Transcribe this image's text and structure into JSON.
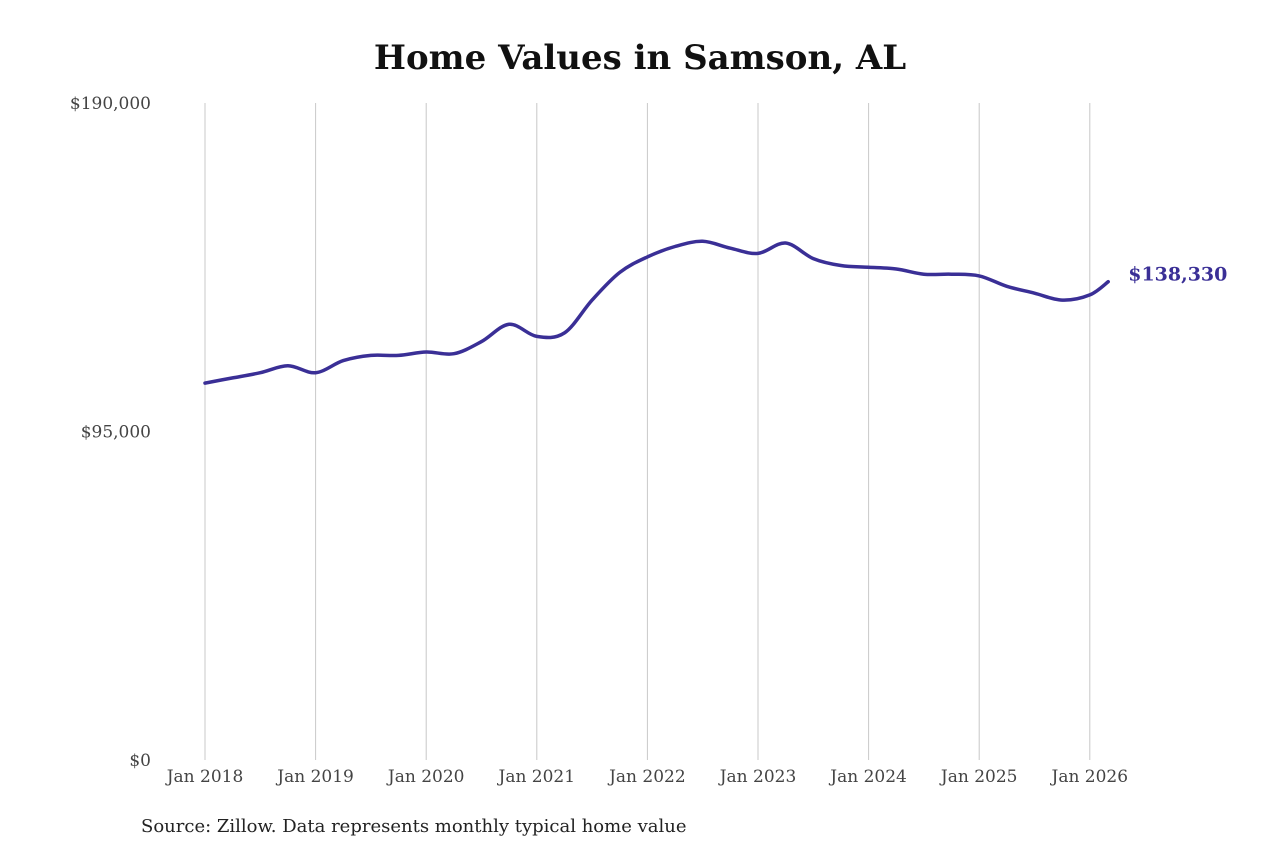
{
  "title": "Home Values in Samson, AL",
  "source": "Source: Zillow. Data represents monthly typical home value",
  "colors": {
    "line": "#3a2f96",
    "grid": "#c8c8c8",
    "text": "#444444"
  },
  "chart_data": {
    "type": "line",
    "title": "Home Values in Samson, AL",
    "xlabel": "",
    "ylabel": "",
    "ylim": [
      0,
      190000
    ],
    "yticks": [
      "$0",
      "$95,000",
      "$190,000"
    ],
    "ytick_values": [
      0,
      95000,
      190000
    ],
    "xticks": [
      "Jan 2018",
      "Jan 2019",
      "Jan 2020",
      "Jan 2021",
      "Jan 2022",
      "Jan 2023",
      "Jan 2024",
      "Jan 2025",
      "Jan 2026"
    ],
    "grid": "vertical at x ticks",
    "end_label": "$138,330",
    "series": [
      {
        "x": [
          "2018-01",
          "2018-04",
          "2018-07",
          "2018-10",
          "2019-01",
          "2019-04",
          "2019-07",
          "2019-10",
          "2020-01",
          "2020-04",
          "2020-07",
          "2020-10",
          "2021-01",
          "2021-04",
          "2021-07",
          "2021-10",
          "2022-01",
          "2022-04",
          "2022-07",
          "2022-10",
          "2023-01",
          "2023-04",
          "2023-07",
          "2023-10",
          "2024-01",
          "2024-04",
          "2024-07",
          "2024-10",
          "2025-01",
          "2025-04",
          "2025-07",
          "2025-10",
          "2026-01",
          "2026-03"
        ],
        "values": [
          109000,
          110500,
          112000,
          114000,
          112000,
          115500,
          117000,
          117000,
          118000,
          117500,
          121000,
          126000,
          122500,
          123500,
          133000,
          141000,
          145500,
          148500,
          150000,
          148000,
          146500,
          149500,
          145000,
          143000,
          142500,
          142000,
          140500,
          140500,
          140000,
          137000,
          135000,
          133000,
          134500,
          138330
        ]
      }
    ]
  }
}
